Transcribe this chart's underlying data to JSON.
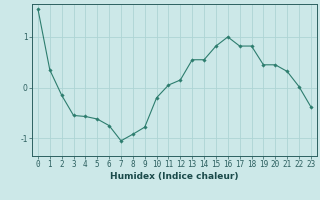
{
  "x": [
    0,
    1,
    2,
    3,
    4,
    5,
    6,
    7,
    8,
    9,
    10,
    11,
    12,
    13,
    14,
    15,
    16,
    17,
    18,
    19,
    20,
    21,
    22,
    23
  ],
  "y": [
    1.55,
    0.35,
    -0.15,
    -0.55,
    -0.57,
    -0.62,
    -0.75,
    -1.05,
    -0.92,
    -0.78,
    -0.2,
    0.05,
    0.15,
    0.55,
    0.55,
    0.82,
    1.0,
    0.82,
    0.82,
    0.45,
    0.45,
    0.32,
    0.02,
    -0.38
  ],
  "xlabel": "Humidex (Indice chaleur)",
  "xlim": [
    -0.5,
    23.5
  ],
  "ylim": [
    -1.35,
    1.65
  ],
  "yticks": [
    -1,
    0,
    1
  ],
  "xticks": [
    0,
    1,
    2,
    3,
    4,
    5,
    6,
    7,
    8,
    9,
    10,
    11,
    12,
    13,
    14,
    15,
    16,
    17,
    18,
    19,
    20,
    21,
    22,
    23
  ],
  "line_color": "#2d7d6e",
  "marker": "D",
  "marker_size": 1.8,
  "bg_color": "#cce8e8",
  "grid_color": "#aed4d4",
  "axis_color": "#2d6060",
  "label_color": "#1a4a4a",
  "xlabel_fontsize": 6.5,
  "tick_fontsize": 5.5
}
